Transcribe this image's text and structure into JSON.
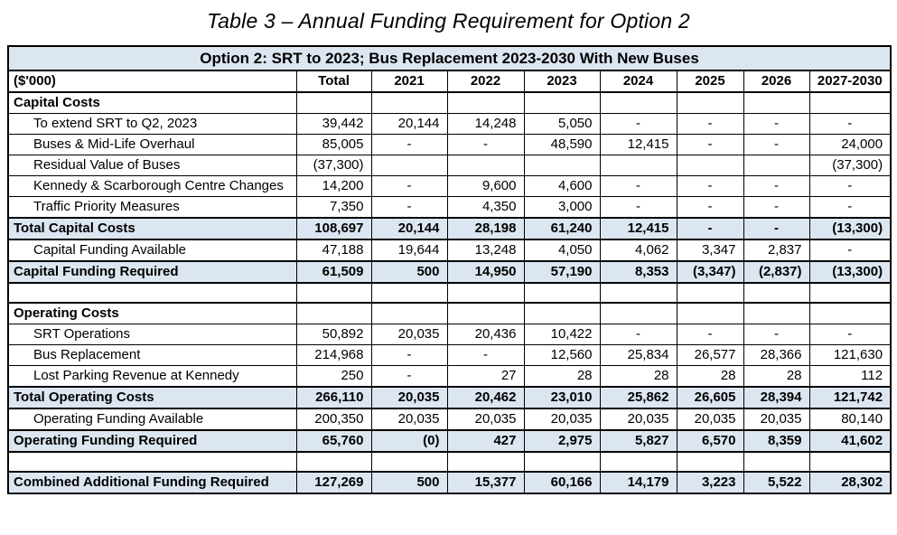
{
  "title": "Table 3  – Annual Funding Requirement for Option 2",
  "colors": {
    "highlight": "#dce6f1",
    "border": "#000000",
    "text": "#000000"
  },
  "table": {
    "header": "Option 2: SRT to 2023; Bus Replacement 2023-2030 With New Buses",
    "unit_label": "($'000)",
    "columns": [
      "Total",
      "2021",
      "2022",
      "2023",
      "2024",
      "2025",
      "2026",
      "2027-2030"
    ],
    "rows": [
      {
        "label": "Capital Costs",
        "style": "section",
        "values": [
          "",
          "",
          "",
          "",
          "",
          "",
          "",
          ""
        ]
      },
      {
        "label": "To extend SRT to Q2, 2023",
        "style": "item",
        "values": [
          "39,442",
          "20,144",
          "14,248",
          "5,050",
          "-",
          "-",
          "-",
          "-"
        ]
      },
      {
        "label": "Buses & Mid-Life Overhaul",
        "style": "item",
        "values": [
          "85,005",
          "-",
          "-",
          "48,590",
          "12,415",
          "-",
          "-",
          "24,000"
        ]
      },
      {
        "label": "Residual Value of Buses",
        "style": "item",
        "values": [
          "(37,300)",
          "",
          "",
          "",
          "",
          "",
          "",
          "(37,300)"
        ]
      },
      {
        "label": "Kennedy & Scarborough Centre Changes",
        "style": "item",
        "values": [
          "14,200",
          "-",
          "9,600",
          "4,600",
          "-",
          "-",
          "-",
          "-"
        ]
      },
      {
        "label": "Traffic Priority Measures",
        "style": "item",
        "values": [
          "7,350",
          "-",
          "4,350",
          "3,000",
          "-",
          "-",
          "-",
          "-"
        ]
      },
      {
        "label": "Total Capital Costs",
        "style": "total",
        "values": [
          "108,697",
          "20,144",
          "28,198",
          "61,240",
          "12,415",
          "-",
          "-",
          "(13,300)"
        ]
      },
      {
        "label": "Capital Funding Available",
        "style": "item",
        "values": [
          "47,188",
          "19,644",
          "13,248",
          "4,050",
          "4,062",
          "3,347",
          "2,837",
          "-"
        ]
      },
      {
        "label": "Capital Funding Required",
        "style": "total",
        "values": [
          "61,509",
          "500",
          "14,950",
          "57,190",
          "8,353",
          "(3,347)",
          "(2,837)",
          "(13,300)"
        ]
      },
      {
        "label": "",
        "style": "blank",
        "values": [
          "",
          "",
          "",
          "",
          "",
          "",
          "",
          ""
        ]
      },
      {
        "label": "Operating Costs",
        "style": "section",
        "values": [
          "",
          "",
          "",
          "",
          "",
          "",
          "",
          ""
        ]
      },
      {
        "label": "SRT Operations",
        "style": "item",
        "values": [
          "50,892",
          "20,035",
          "20,436",
          "10,422",
          "-",
          "-",
          "-",
          "-"
        ]
      },
      {
        "label": "Bus Replacement",
        "style": "item",
        "values": [
          "214,968",
          "-",
          "-",
          "12,560",
          "25,834",
          "26,577",
          "28,366",
          "121,630"
        ]
      },
      {
        "label": "Lost Parking Revenue at Kennedy",
        "style": "item",
        "values": [
          "250",
          "-",
          "27",
          "28",
          "28",
          "28",
          "28",
          "112"
        ]
      },
      {
        "label": "Total Operating Costs",
        "style": "total",
        "values": [
          "266,110",
          "20,035",
          "20,462",
          "23,010",
          "25,862",
          "26,605",
          "28,394",
          "121,742"
        ]
      },
      {
        "label": "Operating Funding Available",
        "style": "item",
        "values": [
          "200,350",
          "20,035",
          "20,035",
          "20,035",
          "20,035",
          "20,035",
          "20,035",
          "80,140"
        ]
      },
      {
        "label": "Operating Funding Required",
        "style": "total",
        "values": [
          "65,760",
          "(0)",
          "427",
          "2,975",
          "5,827",
          "6,570",
          "8,359",
          "41,602"
        ]
      },
      {
        "label": "",
        "style": "blank",
        "values": [
          "",
          "",
          "",
          "",
          "",
          "",
          "",
          ""
        ]
      },
      {
        "label": "Combined Additional Funding Required",
        "style": "total",
        "values": [
          "127,269",
          "500",
          "15,377",
          "60,166",
          "14,179",
          "3,223",
          "5,522",
          "28,302"
        ]
      }
    ]
  }
}
